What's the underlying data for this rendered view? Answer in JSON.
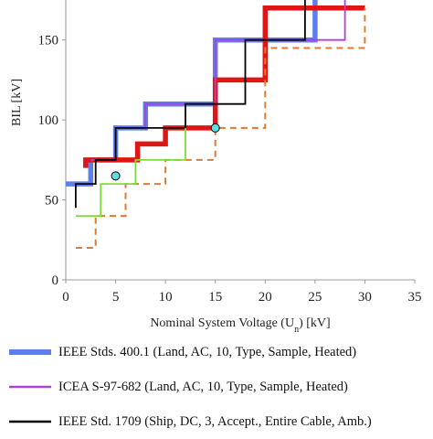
{
  "chart_data": {
    "type": "line",
    "xlabel": "Nominal System Voltage (U",
    "xlabel_sub": "n",
    "xlabel_suffix": ") [kV]",
    "ylabel": "BIL [kV]",
    "xlim": [
      0,
      35
    ],
    "ylim": [
      0,
      175
    ],
    "xticks": [
      "0",
      "5",
      "10",
      "15",
      "20",
      "25",
      "30",
      "35"
    ],
    "yticks": [
      "0",
      "50",
      "100",
      "150"
    ],
    "grid": false,
    "legend_position": "bottom",
    "series": [
      {
        "name": "IEEE Stds. 400.1 (Land, AC, 10, Type, Sample, Heated)",
        "color": "#5b7ff0",
        "style": "solid-thick",
        "points": [
          [
            0,
            60
          ],
          [
            2.5,
            60
          ],
          [
            2.5,
            75
          ],
          [
            5,
            75
          ],
          [
            5,
            95
          ],
          [
            8,
            95
          ],
          [
            8,
            110
          ],
          [
            15,
            110
          ],
          [
            15,
            150
          ],
          [
            25,
            150
          ],
          [
            25,
            175
          ]
        ]
      },
      {
        "name": "ICEA S-97-682 (Land, AC, 10, Type, Sample, Heated)",
        "color": "#b23fd6",
        "style": "solid",
        "points": [
          [
            2.5,
            75
          ],
          [
            5,
            75
          ],
          [
            5,
            95
          ],
          [
            8,
            95
          ],
          [
            8,
            110
          ],
          [
            15,
            110
          ],
          [
            15,
            150
          ],
          [
            28,
            150
          ],
          [
            28,
            175
          ]
        ]
      },
      {
        "name": "IEEE Std. 1709 (Ship, DC, 3, Accept., Entire Cable, Amb.)",
        "color": "#000000",
        "style": "solid",
        "points": [
          [
            1,
            45
          ],
          [
            1,
            60
          ],
          [
            3,
            60
          ],
          [
            3,
            75
          ],
          [
            5,
            75
          ],
          [
            5,
            95
          ],
          [
            12,
            95
          ],
          [
            12,
            110
          ],
          [
            18,
            110
          ],
          [
            18,
            150
          ],
          [
            24,
            150
          ],
          [
            24,
            175
          ]
        ]
      },
      {
        "name": "",
        "color": "#e01515",
        "style": "solid-thick",
        "points": [
          [
            2,
            70
          ],
          [
            2,
            75
          ],
          [
            7.2,
            75
          ],
          [
            7.2,
            85
          ],
          [
            10,
            85
          ],
          [
            10,
            95
          ],
          [
            15,
            95
          ],
          [
            15,
            125
          ],
          [
            20,
            125
          ],
          [
            20,
            170
          ],
          [
            30,
            170
          ]
        ]
      },
      {
        "name": "",
        "color": "#e07a30",
        "style": "dashed",
        "points": [
          [
            1,
            20
          ],
          [
            3,
            20
          ],
          [
            3,
            40
          ],
          [
            6,
            40
          ],
          [
            6,
            60
          ],
          [
            10,
            60
          ],
          [
            10,
            75
          ],
          [
            15,
            75
          ],
          [
            15,
            95
          ],
          [
            20,
            95
          ],
          [
            20,
            145
          ],
          [
            30,
            145
          ],
          [
            30,
            170
          ]
        ]
      },
      {
        "name": "",
        "color": "#7fdb3a",
        "style": "solid",
        "points": [
          [
            1,
            40
          ],
          [
            3.5,
            40
          ],
          [
            3.5,
            60
          ],
          [
            7,
            60
          ],
          [
            7,
            75
          ],
          [
            12,
            75
          ],
          [
            12,
            95
          ]
        ]
      }
    ],
    "markers": [
      {
        "x": 5,
        "y": 65,
        "color": "#5ee0e0"
      },
      {
        "x": 15,
        "y": 95,
        "color": "#5ee0e0"
      }
    ]
  },
  "legend": {
    "items": [
      {
        "label": "IEEE Stds. 400.1 (Land, AC, 10, Type, Sample, Heated)",
        "color": "#5b7ff0",
        "style": "thick"
      },
      {
        "label": "ICEA S-97-682 (Land, AC, 10, Type, Sample, Heated)",
        "color": "#b23fd6",
        "style": "thin"
      },
      {
        "label": "IEEE Std. 1709 (Ship, DC, 3, Accept., Entire Cable, Amb.)",
        "color": "#000000",
        "style": "thin"
      }
    ]
  }
}
